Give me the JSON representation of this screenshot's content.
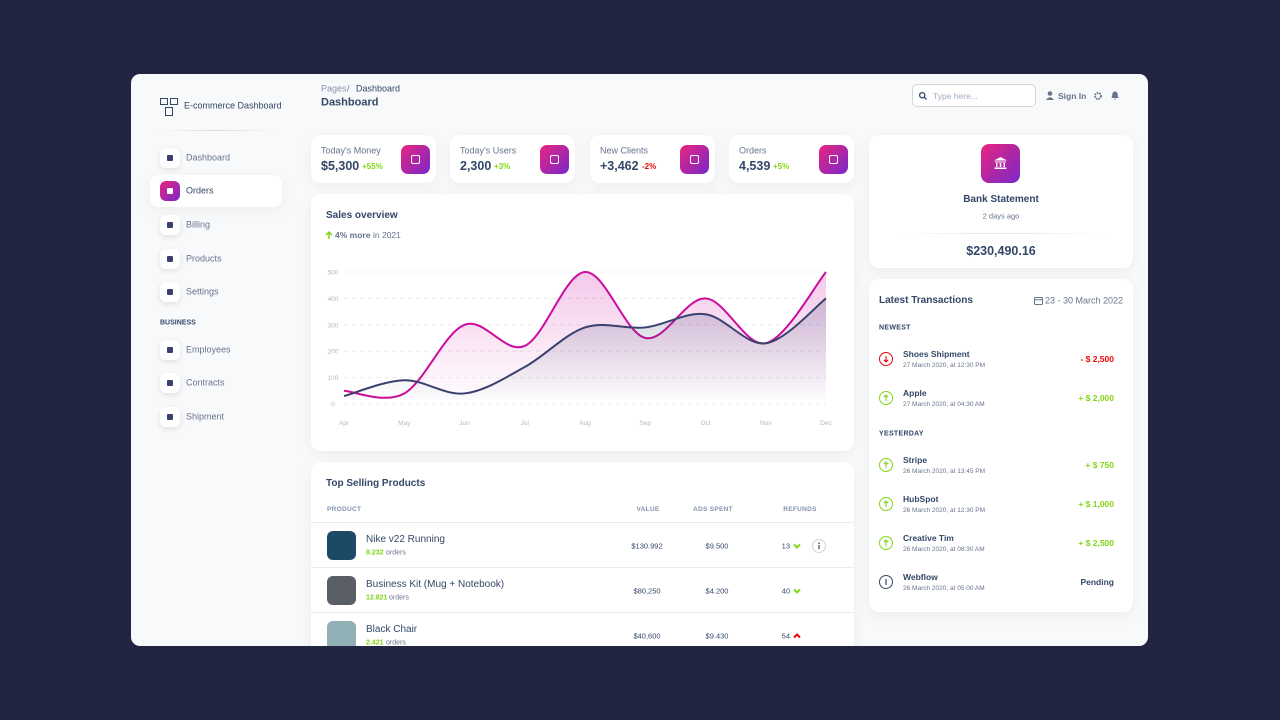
{
  "brand": "E-commerce Dashboard",
  "nav": [
    "Dashboard",
    "Orders",
    "Billing",
    "Products",
    "Settings"
  ],
  "nav_section": "BUSINESS",
  "nav_business": [
    "Employees",
    "Contracts",
    "Shipment"
  ],
  "nav_active": "Orders",
  "breadcrumb": {
    "parent": "Pages",
    "separator": "/",
    "current": "Dashboard"
  },
  "page_title": "Dashboard",
  "search_placeholder": "Type here...",
  "sign_in": "Sign In",
  "stats": [
    {
      "label": "Today's Money",
      "value": "$5,300",
      "change": "+55%"
    },
    {
      "label": "Today's Users",
      "value": "2,300",
      "change": "+3%"
    },
    {
      "label": "New Clients",
      "value": "+3,462",
      "change": "-2%"
    },
    {
      "label": "Orders",
      "value": "4,539",
      "change": "+5%"
    }
  ],
  "chart_data": {
    "type": "line",
    "title": "Sales overview",
    "subtitle_highlight": "4% more",
    "subtitle": "in 2021",
    "categories": [
      "Apr",
      "May",
      "Jun",
      "Jul",
      "Aug",
      "Sep",
      "Oct",
      "Nov",
      "Dec"
    ],
    "series": [
      {
        "color": "#cb0c9f",
        "values": [
          50,
          40,
          300,
          220,
          500,
          250,
          400,
          230,
          500
        ]
      },
      {
        "color": "#3a416f",
        "values": [
          30,
          90,
          40,
          140,
          290,
          290,
          340,
          230,
          400
        ]
      }
    ],
    "ylim": [
      0,
      500
    ],
    "yticks": [
      0,
      100,
      200,
      300,
      400,
      500
    ],
    "grid": true
  },
  "top_products": {
    "title": "Top Selling Products",
    "columns": [
      "PRODUCT",
      "VALUE",
      "ADS SPENT",
      "REFUNDS"
    ],
    "orders_unit": "orders",
    "rows": [
      {
        "name": "Nike v22 Running",
        "orders": "8.232",
        "value": "$130.992",
        "ads_spent": "$9.500",
        "refunds": "13",
        "refund_trend": "down",
        "image": "#1c4a66"
      },
      {
        "name": "Business Kit (Mug + Notebook)",
        "orders": "12.821",
        "value": "$80,250",
        "ads_spent": "$4.200",
        "refunds": "40",
        "refund_trend": "down",
        "image": "#5a5e66"
      },
      {
        "name": "Black Chair",
        "orders": "2.421",
        "value": "$40,600",
        "ads_spent": "$9.430",
        "refunds": "54",
        "refund_trend": "up",
        "image": "#8fb0b4"
      }
    ]
  },
  "bank_statement": {
    "title": "Bank Statement",
    "time": "2 days ago",
    "amount": "$230,490.16"
  },
  "transactions": {
    "title": "Latest Transactions",
    "date_range": "23 - 30 March 2022",
    "groups": [
      {
        "label": "NEWEST",
        "items": [
          {
            "name": "Shoes Shipment",
            "date": "27 March 2020, at 12:30 PM",
            "amount": "- $ 2,500"
          },
          {
            "name": "Apple",
            "date": "27 March 2020, at 04:30 AM",
            "amount": "+ $ 2,000"
          }
        ]
      },
      {
        "label": "YESTERDAY",
        "items": [
          {
            "name": "Stripe",
            "date": "26 March 2020, at 13:45 PM",
            "amount": "+ $ 750"
          },
          {
            "name": "HubSpot",
            "date": "26 March 2020, at 12:30 PM",
            "amount": "+ $ 1,000"
          },
          {
            "name": "Creative Tim",
            "date": "26 March 2020, at 08:30 AM",
            "amount": "+ $ 2,500"
          },
          {
            "name": "Webflow",
            "date": "26 March 2020, at 05:00 AM",
            "amount": "Pending"
          }
        ]
      }
    ]
  }
}
